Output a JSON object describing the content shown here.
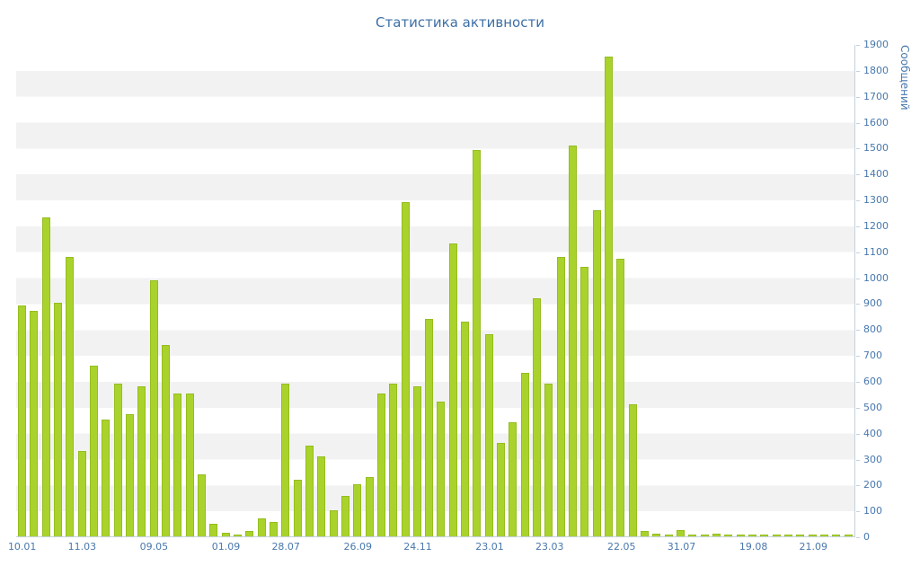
{
  "chart_data": {
    "type": "bar",
    "title": "Статистика активности",
    "xlabel": "",
    "ylabel": "Сообщений",
    "ylim": [
      0,
      1900
    ],
    "y_tick_step": 100,
    "grid": "alternating horizontal bands every 100 units",
    "legend": "none",
    "bar_color": "#a9d32c",
    "axis_text_color": "#4878ad",
    "title_color": "#3d6fa5",
    "x_tick_labels": [
      "10.01",
      "11.03",
      "09.05",
      "01.09",
      "28.07",
      "26.09",
      "24.11",
      "23.01",
      "23.03",
      "22.05",
      "31.07",
      "19.08",
      "21.09"
    ],
    "x_tick_bar_indices": [
      0,
      5,
      11,
      17,
      22,
      28,
      33,
      39,
      44,
      50,
      55,
      61,
      66
    ],
    "values": [
      890,
      870,
      1230,
      900,
      1080,
      330,
      660,
      450,
      590,
      470,
      580,
      990,
      740,
      550,
      550,
      240,
      50,
      15,
      8,
      20,
      70,
      55,
      590,
      220,
      350,
      310,
      100,
      155,
      200,
      230,
      550,
      590,
      1290,
      580,
      840,
      520,
      1130,
      830,
      1490,
      780,
      360,
      440,
      630,
      920,
      590,
      1080,
      1510,
      1040,
      1260,
      1850,
      1070,
      510,
      20,
      10,
      5,
      25,
      8,
      5,
      10,
      5,
      5,
      8,
      3,
      5,
      3,
      3,
      3,
      3,
      3,
      3
    ]
  }
}
